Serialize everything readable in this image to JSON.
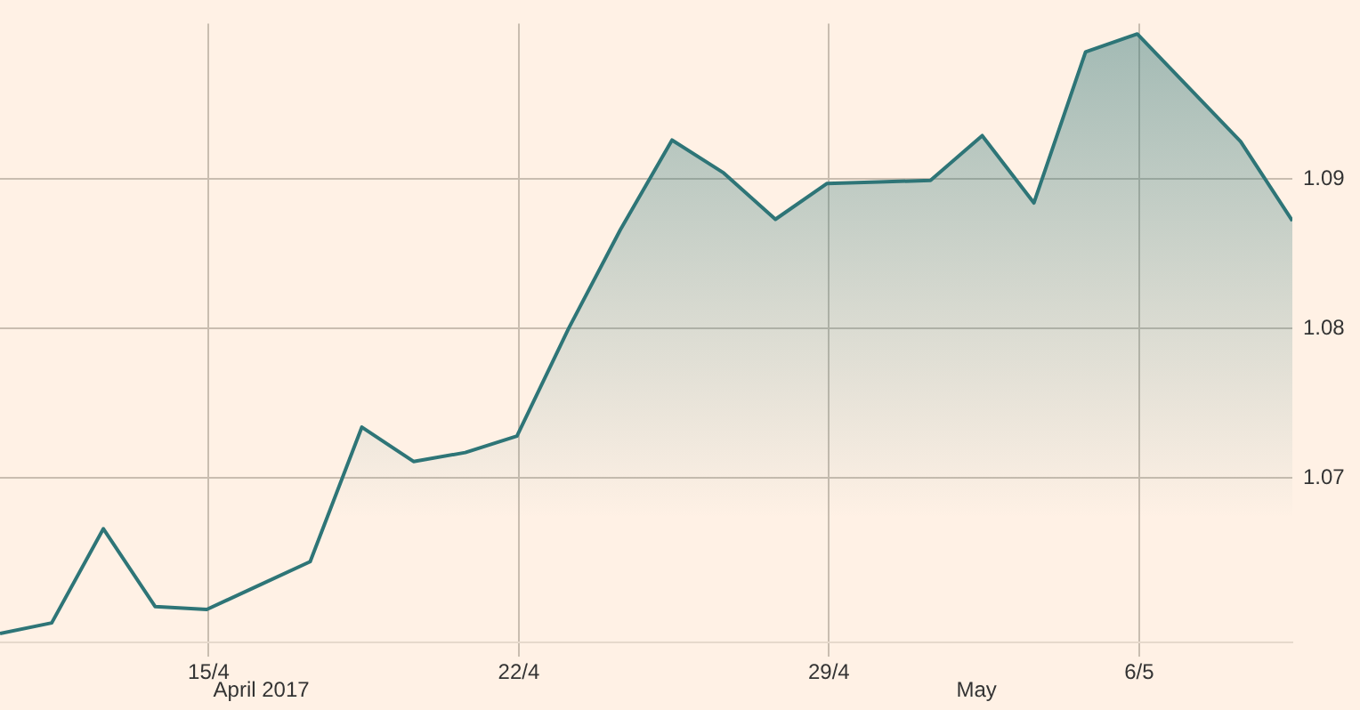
{
  "chart_data": {
    "type": "area",
    "x": [
      "2017-04-10T07:00",
      "2017-04-11T11:00",
      "2017-04-12T15:00",
      "2017-04-13T19:00",
      "2017-04-14T23:00",
      "2017-04-16T03:00",
      "2017-04-17T07:00",
      "2017-04-18T11:00",
      "2017-04-19T15:00",
      "2017-04-20T19:00",
      "2017-04-21T23:00",
      "2017-04-23T03:00",
      "2017-04-24T07:00",
      "2017-04-25T11:00",
      "2017-04-26T15:00",
      "2017-04-27T19:00",
      "2017-04-28T23:00",
      "2017-04-30T03:00",
      "2017-05-01T07:00",
      "2017-05-02T11:00",
      "2017-05-03T15:00",
      "2017-05-04T19:00",
      "2017-05-05T23:00",
      "2017-05-07T03:00",
      "2017-05-08T07:00",
      "2017-05-09T11:00"
    ],
    "series": [
      {
        "color": "#2e7577",
        "values": [
          1.0596,
          1.0603,
          1.0666,
          1.0614,
          1.0612,
          1.0628,
          1.0644,
          1.0734,
          1.0711,
          1.0717,
          1.0728,
          1.08,
          1.0866,
          1.0926,
          1.0904,
          1.0873,
          1.0897,
          1.0898,
          1.0899,
          1.0929,
          1.0884,
          1.0985,
          1.0997,
          1.0961,
          1.0925,
          1.0872
        ]
      }
    ],
    "xticks": [
      {
        "value": "2017-04-15",
        "label": "15/4"
      },
      {
        "value": "2017-04-22",
        "label": "22/4"
      },
      {
        "value": "2017-04-29",
        "label": "29/4"
      },
      {
        "value": "2017-05-06",
        "label": "6/5"
      }
    ],
    "ylim": [
      1.059,
      1.1004
    ],
    "yticks": [
      1.07,
      1.08,
      1.09
    ],
    "xlim": [
      "2017-04-10T07:00",
      "2017-05-09T11:00"
    ],
    "grid": true,
    "annotations": [
      "April 2017",
      "May"
    ]
  }
}
